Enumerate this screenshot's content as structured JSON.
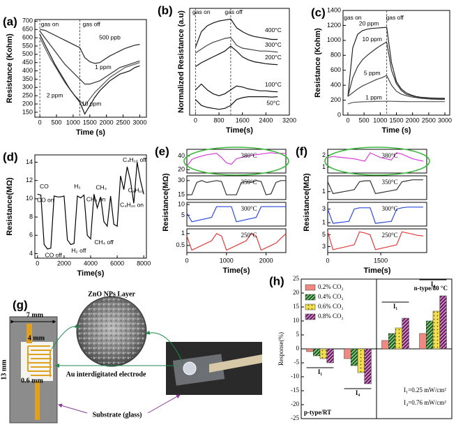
{
  "chart_data": [
    {
      "type": "line",
      "label": "(a)",
      "xlabel": "Time (s)",
      "ylabel": "Resistance (Kohm)",
      "x": [
        0,
        150,
        300,
        450,
        600,
        750,
        900,
        1050,
        1200,
        1350,
        1500,
        1650,
        1800,
        1950,
        2100,
        2250,
        2400,
        2550,
        2700,
        2850,
        3000
      ],
      "series": [
        {
          "color": "#222",
          "values": [
            650,
            645,
            630,
            615,
            600,
            585,
            570,
            555,
            540,
            480,
            455,
            445,
            450,
            470,
            490,
            505,
            520,
            535,
            545,
            555,
            560
          ]
        },
        {
          "color": "#333",
          "values": [
            640,
            600,
            560,
            520,
            480,
            440,
            410,
            380,
            350,
            320,
            320,
            330,
            340,
            360,
            380,
            400,
            420,
            430,
            440,
            450,
            460
          ]
        },
        {
          "color": "#555",
          "values": [
            600,
            540,
            480,
            430,
            380,
            330,
            290,
            250,
            220,
            190,
            230,
            270,
            300,
            330,
            360,
            380,
            400,
            420,
            430,
            440,
            450
          ]
        },
        {
          "color": "#111",
          "values": [
            620,
            560,
            500,
            440,
            390,
            340,
            290,
            250,
            210,
            140,
            190,
            240,
            280,
            310,
            340,
            360,
            380,
            390,
            400,
            420,
            430
          ]
        }
      ],
      "annotations": [
        {
          "text": "500 ppb",
          "x": 2100,
          "y": 600
        },
        {
          "text": "1 ppm",
          "x": 1900,
          "y": 420
        },
        {
          "text": "2 ppm",
          "x": 450,
          "y": 250
        },
        {
          "text": "10 ppm",
          "x": 1550,
          "y": 200
        },
        {
          "text": "gas on",
          "x": 300,
          "y": 680
        },
        {
          "text": "gas off",
          "x": 1550,
          "y": 680
        }
      ],
      "vlines": [
        0,
        1200
      ],
      "xlim": [
        -150,
        3200
      ],
      "xticks": [
        0,
        500,
        1000,
        1500,
        2000,
        2500,
        3000
      ],
      "ylim": [
        120,
        710
      ],
      "yticks": [
        150,
        200,
        250,
        300,
        350,
        400,
        450,
        500,
        550,
        600,
        650,
        700
      ]
    },
    {
      "type": "line",
      "label": "(b)",
      "xlabel": "Time(s)",
      "ylabel": "Normalized Resistance (a.u)",
      "x": [
        0,
        200,
        400,
        600,
        800,
        1000,
        1200,
        1400,
        1600,
        1800,
        2000,
        2200,
        2400,
        2600,
        2800
      ],
      "series": [
        {
          "color": "#111",
          "values": [
            3.5,
            4.3,
            4.6,
            4.75,
            4.85,
            4.9,
            4.95,
            4.5,
            4.3,
            4.15,
            4.05,
            4.0,
            3.95,
            3.9,
            3.9
          ]
        },
        {
          "color": "#444",
          "values": [
            3.2,
            3.4,
            3.6,
            3.75,
            3.85,
            3.95,
            4.0,
            3.6,
            3.45,
            3.4,
            3.35,
            3.3,
            3.3,
            3.28,
            3.25
          ]
        },
        {
          "color": "#111",
          "values": [
            2.5,
            2.7,
            2.85,
            3.0,
            3.15,
            3.3,
            3.55,
            3.3,
            3.0,
            2.85,
            2.75,
            2.7,
            2.65,
            2.62,
            2.6
          ]
        },
        {
          "color": "#111",
          "values": [
            1.3,
            1.6,
            1.3,
            1.1,
            1.0,
            1.1,
            1.3,
            1.5,
            1.45,
            1.35,
            1.3,
            1.25,
            1.25,
            1.22,
            1.2
          ]
        },
        {
          "color": "#111",
          "values": [
            0.8,
            0.5,
            0.4,
            0.35,
            0.3,
            0.35,
            0.5,
            0.8,
            0.9,
            0.95,
            0.95,
            0.95,
            0.95,
            0.93,
            0.95
          ]
        }
      ],
      "annotations": [
        {
          "text": "gas on",
          "x": 200,
          "y": 5.3
        },
        {
          "text": "gas off",
          "x": 1300,
          "y": 5.3
        },
        {
          "text": "400°C",
          "x": 2650,
          "y": 4.35
        },
        {
          "text": "300°C",
          "x": 2650,
          "y": 3.6
        },
        {
          "text": "200°C",
          "x": 2650,
          "y": 2.95
        },
        {
          "text": "100°C",
          "x": 2650,
          "y": 1.55
        },
        {
          "text": "50°C",
          "x": 2650,
          "y": 0.6
        }
      ],
      "vlines": [
        0,
        1200
      ],
      "xlim": [
        -200,
        3200
      ],
      "xticks": [
        0,
        800,
        1600,
        2400,
        3200
      ],
      "ylim": [
        0,
        5.5
      ]
    },
    {
      "type": "line",
      "label": "(c)",
      "xlabel": "Time (s)",
      "ylabel": "Resistance (Kohm)",
      "x": [
        0,
        150,
        300,
        450,
        600,
        750,
        900,
        1050,
        1200,
        1350,
        1500,
        1650,
        1800,
        1950,
        2100,
        2250,
        2400,
        2550,
        2700,
        2850,
        3000
      ],
      "series": [
        {
          "color": "#222",
          "values": [
            250,
            900,
            1080,
            1130,
            1150,
            1160,
            1165,
            1170,
            1175,
            700,
            450,
            350,
            300,
            270,
            250,
            240,
            235,
            230,
            228,
            225,
            225
          ]
        },
        {
          "color": "#333",
          "values": [
            250,
            500,
            650,
            740,
            800,
            850,
            900,
            940,
            980,
            600,
            420,
            330,
            280,
            260,
            245,
            235,
            230,
            225,
            222,
            220,
            220
          ]
        },
        {
          "color": "#444",
          "values": [
            250,
            300,
            350,
            390,
            420,
            450,
            480,
            500,
            530,
            400,
            320,
            280,
            260,
            245,
            235,
            225,
            220,
            215,
            212,
            210,
            210
          ]
        },
        {
          "color": "#555",
          "values": [
            150,
            170,
            175,
            178,
            180,
            182,
            183,
            185,
            186,
            185,
            183,
            182,
            181,
            180,
            180,
            180,
            180,
            180,
            180,
            180,
            180
          ]
        }
      ],
      "annotations": [
        {
          "text": "gas on",
          "x": 150,
          "y": 1300
        },
        {
          "text": "gas off",
          "x": 1450,
          "y": 1300
        },
        {
          "text": "20 ppm",
          "x": 650,
          "y": 1220
        },
        {
          "text": "10 ppm",
          "x": 750,
          "y": 1010
        },
        {
          "text": "5 ppm",
          "x": 750,
          "y": 560
        },
        {
          "text": "1 ppm",
          "x": 800,
          "y": 230
        }
      ],
      "vlines": [
        1200
      ],
      "xlim": [
        -150,
        3150
      ],
      "xticks": [
        0,
        500,
        1000,
        1500,
        2000,
        2500,
        3000
      ],
      "ylim": [
        0,
        1400
      ],
      "yticks": [
        0,
        200,
        400,
        600,
        800,
        1000,
        1200,
        1400
      ]
    },
    {
      "type": "line",
      "label": "(d)",
      "xlabel": "Time(s)",
      "ylabel": "Resistance(MΩ)",
      "x": [
        0,
        250,
        500,
        750,
        1000,
        1250,
        1500,
        1750,
        2000,
        2250,
        2500,
        2750,
        3000,
        3250,
        3500,
        3750,
        4000,
        4250,
        4500,
        4750,
        5000,
        5250,
        5500,
        5750,
        6000,
        6250,
        6500,
        6750,
        7000,
        7250,
        7500,
        7750,
        8000
      ],
      "series": [
        {
          "color": "#000",
          "values": [
            10.5,
            10.4,
            5,
            4.5,
            4.6,
            10.3,
            10.2,
            10.2,
            10.3,
            5.5,
            5.0,
            5.1,
            10.3,
            10.1,
            10.4,
            6,
            5.6,
            10.5,
            9.0,
            10.2,
            7.5,
            7.0,
            10.3,
            7.2,
            7.0,
            12.5,
            11,
            13.5,
            12,
            9.5,
            14,
            12,
            10.5
          ]
        }
      ],
      "annotations": [
        {
          "text": "CO",
          "x": 500,
          "y": 11.3,
          "color": "#1f3fd0"
        },
        {
          "text": "CO on",
          "x": 600,
          "y": 9.8,
          "color": "#1f3fd0"
        },
        {
          "text": "CO off",
          "x": 1200,
          "y": 3.8,
          "color": "#1f3fd0"
        },
        {
          "text": "H₂",
          "x": 3000,
          "y": 11.3,
          "color": "#e02020"
        },
        {
          "text": "H₂ off",
          "x": 3100,
          "y": 4.3,
          "color": "#e02020"
        },
        {
          "text": "CH₄",
          "x": 4800,
          "y": 11.2,
          "color": "#000"
        },
        {
          "text": "CH₄ on",
          "x": 4400,
          "y": 9.9,
          "color": "#000"
        },
        {
          "text": "CH₄ off",
          "x": 5000,
          "y": 5.2,
          "color": "#000"
        },
        {
          "text": "C₄H₁₀ off",
          "x": 7300,
          "y": 14.2,
          "color": "#d030d0"
        },
        {
          "text": "C₄H₁₀",
          "x": 7400,
          "y": 10.9,
          "color": "#d030d0"
        },
        {
          "text": "C₄H₁₀ on",
          "x": 7100,
          "y": 9.3,
          "color": "#d030d0"
        }
      ],
      "xlim": [
        -200,
        8200
      ],
      "xticks": [
        0,
        2000,
        4000,
        6000,
        8000
      ],
      "ylim": [
        3.5,
        14.8
      ],
      "yticks": [
        4,
        6,
        8,
        10,
        12,
        14
      ]
    },
    {
      "type": "stacked",
      "label": "(e)",
      "xlabel": "Time(s)",
      "ylabel": "Resistance(MΩ)",
      "x": [
        0,
        125,
        250,
        375,
        500,
        625,
        750,
        875,
        1000,
        1125,
        1250,
        1375,
        1500,
        1625,
        1750,
        1875,
        2000,
        2125,
        2250,
        2375,
        2500
      ],
      "series": [
        {
          "name": "380°C",
          "color": "#d63cd6",
          "ylim": [
            15,
            50
          ],
          "yticks": [
            20,
            40
          ],
          "values": [
            25,
            35,
            38,
            40,
            42,
            43,
            44,
            38,
            30,
            28,
            36,
            38,
            40,
            41,
            42,
            43,
            44,
            45,
            44,
            44,
            44
          ]
        },
        {
          "name": "350°C",
          "color": "#333",
          "ylim": [
            10,
            35
          ],
          "yticks": [
            15,
            30
          ],
          "values": [
            15,
            15,
            28,
            30,
            28,
            29,
            30,
            29,
            15,
            15,
            15,
            28,
            29,
            28,
            30,
            29,
            15,
            16,
            28,
            30,
            30
          ]
        },
        {
          "name": "300°C",
          "color": "#2a4ad6",
          "ylim": [
            0,
            11
          ],
          "yticks": [
            5,
            10
          ],
          "values": [
            6,
            2,
            2.5,
            3,
            3.5,
            4,
            9,
            9,
            9,
            9,
            2,
            2.5,
            3,
            3.5,
            4,
            9,
            9,
            9,
            9,
            9,
            9
          ]
        },
        {
          "name": "250°C",
          "color": "#e23a3a",
          "ylim": [
            0.2,
            1.2
          ],
          "yticks": [
            0.5,
            1
          ],
          "values": [
            0.9,
            0.3,
            0.4,
            0.5,
            0.6,
            0.7,
            1.0,
            0.9,
            0.3,
            0.4,
            0.5,
            0.6,
            0.7,
            1.0,
            0.9,
            0.3,
            0.4,
            0.5,
            0.6,
            0.8,
            1.0
          ]
        }
      ],
      "xlim": [
        0,
        2500
      ],
      "xticks": [
        0,
        1000,
        2000
      ]
    },
    {
      "type": "stacked",
      "label": "(f)",
      "xlabel": "Time(s)",
      "ylabel": "Resistance(MΩ)",
      "x": [
        0,
        150,
        300,
        450,
        600,
        750,
        900,
        1050,
        1200,
        1350,
        1500,
        1650,
        1800,
        1950,
        2100,
        2250,
        2400,
        2550,
        2700
      ],
      "series": [
        {
          "name": "380°C",
          "color": "#d63cd6",
          "ylim": [
            0.5,
            2.5
          ],
          "yticks": [
            1,
            2
          ],
          "values": [
            1.8,
            1.9,
            1.85,
            1.8,
            1.75,
            1.7,
            1.6,
            1.5,
            2.2,
            2.0,
            1.8,
            1.7,
            1.6,
            2.2,
            2.1,
            1.9,
            1.7,
            1.6,
            1.5
          ]
        },
        {
          "name": "350°C",
          "color": "#333",
          "ylim": [
            0.6,
            1.8
          ],
          "yticks": [
            1
          ],
          "values": [
            1.5,
            0.9,
            0.95,
            1.0,
            1.05,
            1.1,
            1.5,
            1.55,
            1.55,
            0.9,
            0.95,
            1.0,
            1.05,
            1.1,
            1.5,
            1.55,
            1.6,
            1.6,
            1.6
          ]
        },
        {
          "name": "300°C",
          "color": "#2a4ad6",
          "ylim": [
            0.5,
            4
          ],
          "yticks": [
            1,
            3
          ],
          "values": [
            3,
            0.9,
            1,
            1.1,
            1.2,
            3,
            3.2,
            3.2,
            3.2,
            0.9,
            1,
            1.1,
            1.2,
            3,
            3.2,
            3.3,
            3.3,
            3.3,
            3.3
          ]
        },
        {
          "name": "250°C",
          "color": "#e23a3a",
          "ylim": [
            2,
            6
          ],
          "yticks": [
            3,
            5
          ],
          "values": [
            5.5,
            2.5,
            2.7,
            2.9,
            3.1,
            3.3,
            5.5,
            5.3,
            5.0,
            2.5,
            2.7,
            2.9,
            3.1,
            3.3,
            5.5,
            5.3,
            5.1,
            4.9,
            4.8
          ]
        }
      ],
      "xlim": [
        0,
        2800
      ],
      "xticks": [
        0,
        1500
      ]
    },
    {
      "type": "bar",
      "label": "(h)",
      "ylabel": "Response(%)",
      "categories": [
        "I₁",
        "I₄",
        "I₁",
        "I₄"
      ],
      "series": [
        {
          "name": "0.2% CO₂",
          "color": "#f08a80",
          "pattern": "solid",
          "values": [
            -1,
            -3.5,
            3,
            5.5
          ]
        },
        {
          "name": "0.4% CO₂",
          "color": "#1a6b1a",
          "pattern": "hatch",
          "values": [
            -2.5,
            -6,
            5.5,
            10
          ]
        },
        {
          "name": "0.6% CO₂",
          "color": "#f3df4a",
          "pattern": "dots",
          "values": [
            -3.5,
            -8.5,
            7.5,
            13.5
          ]
        },
        {
          "name": "0.8% CO₂",
          "color": "#7a1a6e",
          "pattern": "hatch",
          "values": [
            -5,
            -12.5,
            11,
            19
          ]
        }
      ],
      "groups": [
        "p-type/RT",
        "n-type/80 °C"
      ],
      "notes": [
        "I₁=0.25 mW/cm²",
        "I₄=0.76 mW/cm²"
      ],
      "ylim": [
        -25,
        25
      ],
      "yticks": [
        -25,
        -20,
        -15,
        -10,
        -5,
        0,
        5,
        10,
        15,
        20,
        25
      ]
    }
  ],
  "diagram": {
    "label": "(g)",
    "width": "7 mm",
    "height": "13 mm",
    "inner_width": "4 mm",
    "gap": "0.6 mm",
    "layer": "ZnO NPs Layer",
    "electrode": "Au interdigitated electrode",
    "substrate": "Substrate (glass)"
  }
}
